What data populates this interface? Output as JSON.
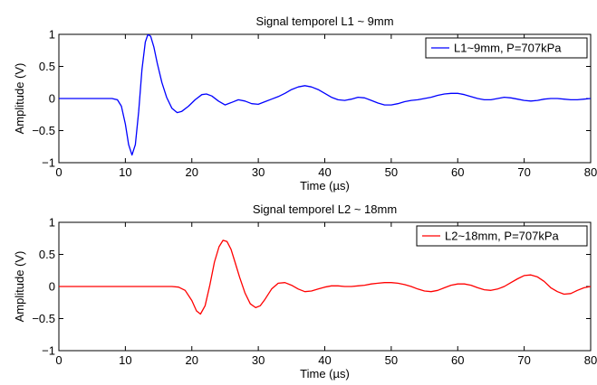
{
  "figure": {
    "background": "#ffffff"
  },
  "chart_data": [
    {
      "type": "line",
      "title": "Signal temporel L1 ~ 9mm",
      "xlabel": "Time (µs)",
      "ylabel": "Amplitude (V)",
      "xlim": [
        0,
        80
      ],
      "ylim": [
        -1,
        1
      ],
      "xticks": [
        "0",
        "10",
        "20",
        "30",
        "40",
        "50",
        "60",
        "70",
        "80"
      ],
      "yticks": [
        "−1",
        "−0.5",
        "0",
        "0.5",
        "1"
      ],
      "grid": false,
      "legend_position": "top-right",
      "series": [
        {
          "name": "L1~9mm, P=707kPa",
          "color": "#0000ff",
          "x": [
            0,
            8,
            8.8,
            9.4,
            10,
            10.5,
            11,
            11.5,
            12,
            12.5,
            13,
            13.4,
            13.8,
            14.3,
            14.8,
            15.5,
            16.2,
            17,
            17.8,
            18.5,
            19.5,
            20.5,
            21.5,
            22.2,
            23,
            24,
            25,
            26,
            27,
            28,
            29,
            30,
            31,
            32,
            33,
            34,
            35,
            36,
            37,
            38,
            39,
            40,
            41,
            42,
            43,
            44,
            45,
            46,
            47,
            48,
            49,
            50,
            51,
            52,
            53,
            54,
            55,
            56,
            57,
            58,
            59,
            60,
            61,
            62,
            63,
            64,
            65,
            66,
            67,
            68,
            69,
            70,
            71,
            72,
            73,
            74,
            75,
            76,
            77,
            78,
            79,
            80
          ],
          "y": [
            0,
            0,
            -0.02,
            -0.12,
            -0.4,
            -0.72,
            -0.88,
            -0.72,
            -0.2,
            0.45,
            0.88,
            1.0,
            0.97,
            0.8,
            0.55,
            0.25,
            0.02,
            -0.15,
            -0.22,
            -0.2,
            -0.12,
            -0.02,
            0.06,
            0.07,
            0.04,
            -0.04,
            -0.1,
            -0.06,
            -0.02,
            -0.04,
            -0.08,
            -0.09,
            -0.05,
            -0.01,
            0.03,
            0.08,
            0.14,
            0.18,
            0.2,
            0.18,
            0.14,
            0.08,
            0.02,
            -0.02,
            -0.03,
            -0.01,
            0.02,
            0.01,
            -0.03,
            -0.07,
            -0.1,
            -0.1,
            -0.08,
            -0.05,
            -0.03,
            -0.02,
            0.0,
            0.02,
            0.05,
            0.07,
            0.08,
            0.08,
            0.06,
            0.03,
            0.0,
            -0.02,
            -0.02,
            0.0,
            0.02,
            0.01,
            -0.01,
            -0.03,
            -0.04,
            -0.03,
            -0.01,
            0.0,
            0.0,
            -0.01,
            -0.02,
            -0.02,
            -0.01,
            0.0
          ]
        }
      ]
    },
    {
      "type": "line",
      "title": "Signal temporel L2 ~ 18mm",
      "xlabel": "Time (µs)",
      "ylabel": "Amplitude (V)",
      "xlim": [
        0,
        80
      ],
      "ylim": [
        -1,
        1
      ],
      "xticks": [
        "0",
        "10",
        "20",
        "30",
        "40",
        "50",
        "60",
        "70",
        "80"
      ],
      "yticks": [
        "−1",
        "−0.5",
        "0",
        "0.5",
        "1"
      ],
      "grid": false,
      "legend_position": "top-right",
      "series": [
        {
          "name": "L2~18mm, P=707kPa",
          "color": "#ff0000",
          "x": [
            0,
            17,
            18,
            19,
            20,
            20.7,
            21.3,
            22,
            22.7,
            23.4,
            24.1,
            24.7,
            25.3,
            25.9,
            26.5,
            27.2,
            28,
            28.8,
            29.6,
            30.3,
            31,
            32,
            33,
            34,
            35,
            36,
            37,
            38,
            39,
            40,
            41,
            42,
            43,
            44,
            45,
            46,
            47,
            48,
            49,
            50,
            51,
            52,
            53,
            54,
            55,
            56,
            57,
            58,
            59,
            60,
            61,
            62,
            63,
            64,
            65,
            66,
            67,
            68,
            69,
            70,
            71,
            72,
            73,
            74,
            75,
            76,
            77,
            78,
            79,
            80
          ],
          "y": [
            0,
            0,
            -0.01,
            -0.06,
            -0.22,
            -0.38,
            -0.43,
            -0.3,
            0.02,
            0.38,
            0.62,
            0.72,
            0.7,
            0.58,
            0.38,
            0.14,
            -0.1,
            -0.27,
            -0.33,
            -0.3,
            -0.2,
            -0.04,
            0.05,
            0.06,
            0.02,
            -0.04,
            -0.08,
            -0.07,
            -0.04,
            -0.01,
            0.01,
            0.01,
            0.0,
            0.0,
            0.01,
            0.02,
            0.04,
            0.05,
            0.06,
            0.06,
            0.05,
            0.03,
            0.0,
            -0.04,
            -0.07,
            -0.08,
            -0.06,
            -0.02,
            0.02,
            0.04,
            0.04,
            0.02,
            -0.02,
            -0.05,
            -0.06,
            -0.04,
            0.0,
            0.06,
            0.12,
            0.17,
            0.18,
            0.15,
            0.08,
            -0.02,
            -0.08,
            -0.12,
            -0.11,
            -0.06,
            -0.02,
            0.0
          ]
        }
      ]
    }
  ]
}
